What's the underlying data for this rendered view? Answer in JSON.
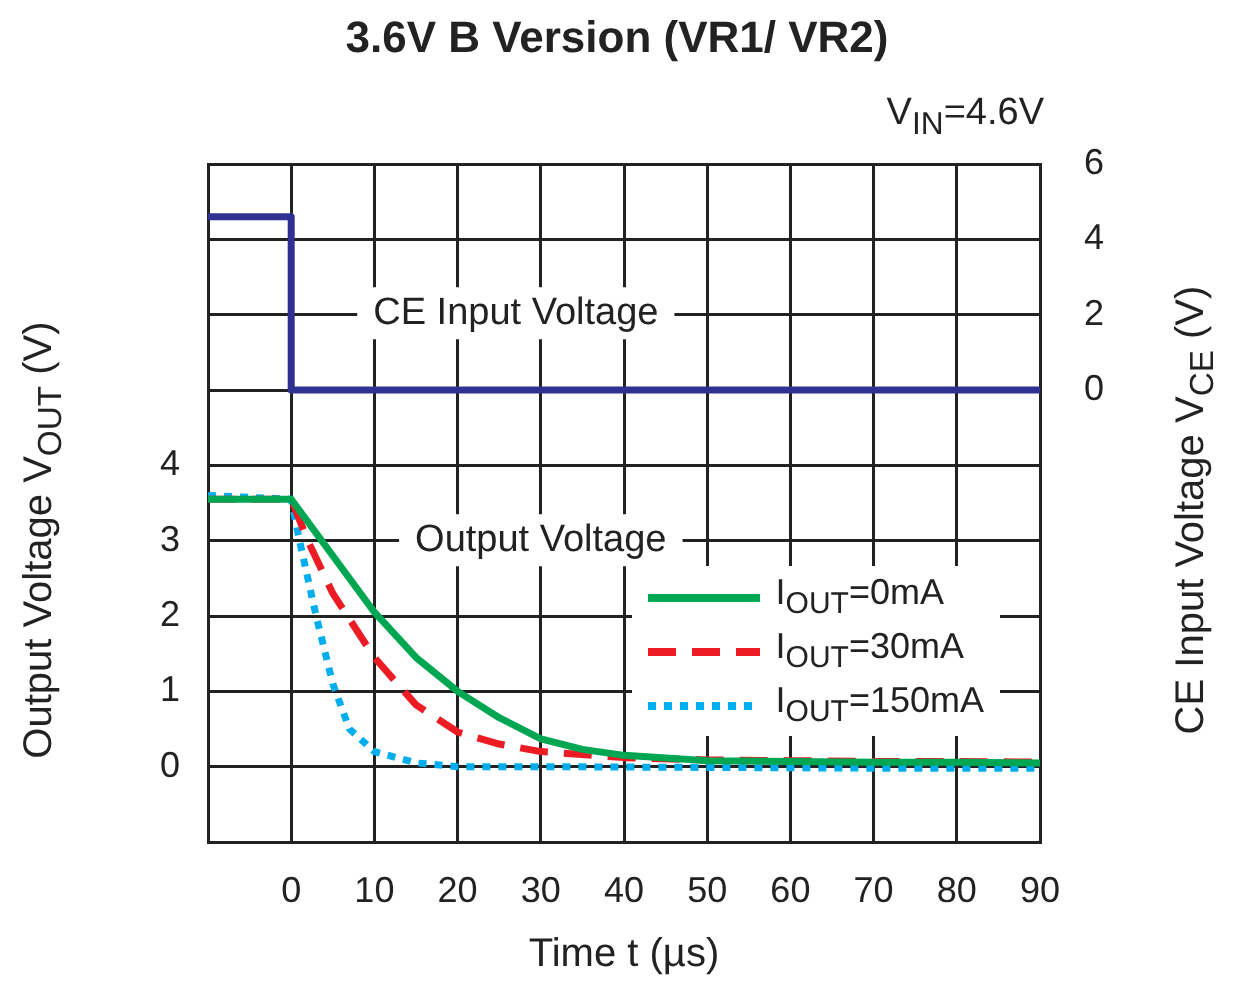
{
  "chart_data": {
    "type": "line",
    "title": "3.6V B Version (VR1/ VR2)",
    "xlabel": "Time t (µs)",
    "ylabel": "Output Voltage V$_{OUT}$ (V)",
    "y2label": "CE Input Voltage V$_{CE}$ (V)",
    "annotations": [
      "V$_{IN}$=4.6V",
      "CE Input Voltage",
      "Output Voltage"
    ],
    "series": [
      {
        "color": "#2e3192",
        "axis": "y2",
        "line_style": "solid",
        "x": [
          -10,
          0,
          0,
          90
        ],
        "values": [
          4.6,
          4.6,
          0,
          0
        ]
      },
      {
        "name": "I$_{OUT}$=0mA",
        "color": "#00a651",
        "line_style": "solid",
        "x": [
          -10,
          0,
          5,
          10,
          15,
          20,
          25,
          30,
          35,
          40,
          50,
          60,
          70,
          80,
          90
        ],
        "values": [
          3.55,
          3.55,
          2.8,
          2.05,
          1.45,
          1.0,
          0.65,
          0.37,
          0.23,
          0.15,
          0.08,
          0.07,
          0.06,
          0.06,
          0.05
        ]
      },
      {
        "name": "I$_{OUT}$=30mA",
        "color": "#ed1c24",
        "line_style": "dashed",
        "x": [
          -10,
          0,
          2,
          5,
          10,
          15,
          20,
          25,
          30,
          40,
          50,
          60,
          70,
          80,
          90
        ],
        "values": [
          3.55,
          3.55,
          3.0,
          2.3,
          1.45,
          0.82,
          0.46,
          0.3,
          0.2,
          0.12,
          0.09,
          0.08,
          0.07,
          0.07,
          0.06
        ]
      },
      {
        "name": "I$_{OUT}$=150mA",
        "color": "#00aeef",
        "line_style": "dotted",
        "x": [
          -10,
          0,
          1,
          3,
          5,
          7,
          10,
          15,
          20,
          30,
          50,
          70,
          90
        ],
        "values": [
          3.6,
          3.55,
          3.0,
          2.0,
          1.1,
          0.5,
          0.2,
          0.05,
          0.0,
          0.0,
          -0.01,
          -0.02,
          -0.02
        ]
      }
    ],
    "xlim": [
      -10,
      90
    ],
    "xticks": [
      {
        "value": -10,
        "label": null
      },
      0,
      10,
      20,
      30,
      40,
      50,
      60,
      70,
      80,
      90
    ],
    "ylim": [
      -1,
      8
    ],
    "yticks": [
      {
        "value": -1,
        "label": null
      },
      0,
      1,
      2,
      3,
      4,
      {
        "value": 5,
        "label": null
      },
      {
        "value": 6,
        "label": null
      },
      {
        "value": 7,
        "label": null
      },
      {
        "value": 8,
        "label": null
      }
    ],
    "y2lim": [
      -12,
      6
    ],
    "y2ticks": [
      0,
      2,
      4,
      6
    ],
    "grid": true,
    "legend": "right",
    "marker": "none"
  }
}
